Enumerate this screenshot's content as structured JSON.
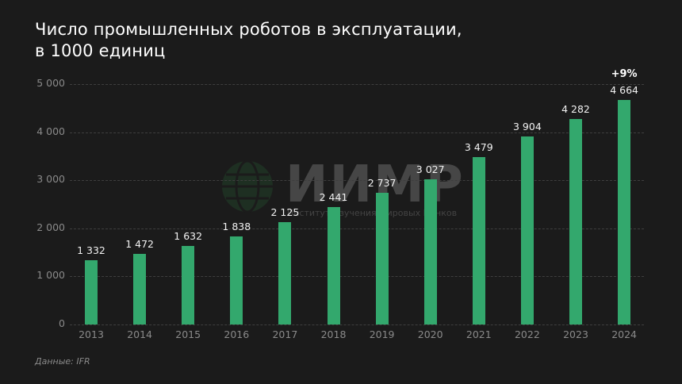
{
  "title": {
    "line1": "Число промышленных роботов в эксплуатации,",
    "line2": "в 1000 единиц"
  },
  "watermark": {
    "logo_text": "ИИМР",
    "subtitle": "Институт Изучения Мировых Рынков"
  },
  "source": "Данные: IFR",
  "annotation": "+9%",
  "colors": {
    "background": "#1b1b1b",
    "bar": "#33a86d",
    "text": "#ffffff",
    "axis_text": "#8a8a8a"
  },
  "y_ticks": [
    "0",
    "1 000",
    "2 000",
    "3 000",
    "4 000",
    "5 000"
  ],
  "bars": [
    {
      "year": "2013",
      "label": "1 332"
    },
    {
      "year": "2014",
      "label": "1 472"
    },
    {
      "year": "2015",
      "label": "1 632"
    },
    {
      "year": "2016",
      "label": "1 838"
    },
    {
      "year": "2017",
      "label": "2 125"
    },
    {
      "year": "2018",
      "label": "2 441"
    },
    {
      "year": "2019",
      "label": "2 737"
    },
    {
      "year": "2020",
      "label": "3 027"
    },
    {
      "year": "2021",
      "label": "3 479"
    },
    {
      "year": "2022",
      "label": "3 904"
    },
    {
      "year": "2023",
      "label": "4 282"
    },
    {
      "year": "2024",
      "label": "4 664"
    }
  ],
  "chart_data": {
    "type": "bar",
    "title": "Число промышленных роботов в эксплуатации, в 1000 единиц",
    "categories": [
      "2013",
      "2014",
      "2015",
      "2016",
      "2017",
      "2018",
      "2019",
      "2020",
      "2021",
      "2022",
      "2023",
      "2024"
    ],
    "values": [
      1332,
      1472,
      1632,
      1838,
      2125,
      2441,
      2737,
      3027,
      3479,
      3904,
      4282,
      4664
    ],
    "xlabel": "",
    "ylabel": "",
    "ylim": [
      0,
      5000
    ],
    "yticks": [
      0,
      1000,
      2000,
      3000,
      4000,
      5000
    ],
    "grid": true,
    "legend": null,
    "annotations": [
      {
        "category": "2024",
        "text": "+9%"
      }
    ],
    "source": "Данные: IFR"
  }
}
